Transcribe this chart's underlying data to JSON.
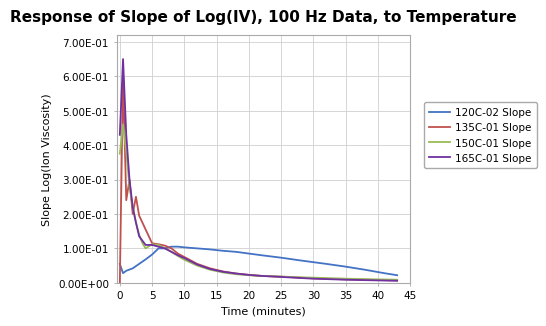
{
  "title": "Response of Slope of Log(IV), 100 Hz Data, to Temperature",
  "xlabel": "Time (minutes)",
  "ylabel": "Slope Log(Ion Viscosity)",
  "xlim": [
    -0.5,
    45
  ],
  "ylim": [
    0,
    0.72
  ],
  "yticks": [
    0.0,
    0.1,
    0.2,
    0.3,
    0.4,
    0.5,
    0.6,
    0.7
  ],
  "ytick_labels": [
    "0.00E+00",
    "1.00E-01",
    "2.00E-01",
    "3.00E-01",
    "4.00E-01",
    "5.00E-01",
    "6.00E-01",
    "7.00E-01"
  ],
  "xticks": [
    0,
    5,
    10,
    15,
    20,
    25,
    30,
    35,
    40,
    45
  ],
  "series": [
    {
      "label": "120C-02 Slope",
      "color": "#4472C4",
      "t": [
        0,
        0.5,
        1,
        2,
        3,
        4,
        5,
        6,
        7,
        8,
        9,
        10,
        12,
        14,
        16,
        18,
        20,
        22,
        25,
        28,
        30,
        32,
        35,
        38,
        41,
        43
      ],
      "v": [
        0.055,
        0.028,
        0.035,
        0.042,
        0.055,
        0.068,
        0.082,
        0.1,
        0.1,
        0.105,
        0.105,
        0.103,
        0.1,
        0.097,
        0.093,
        0.09,
        0.085,
        0.08,
        0.073,
        0.065,
        0.06,
        0.055,
        0.047,
        0.038,
        0.028,
        0.022
      ]
    },
    {
      "label": "135C-01 Slope",
      "color": "#C0504D",
      "t": [
        0,
        0.5,
        1,
        1.5,
        2,
        2.5,
        3,
        4,
        5,
        6,
        7,
        8,
        9,
        10,
        12,
        14,
        16,
        18,
        20,
        22,
        25,
        28,
        30,
        35,
        40,
        43
      ],
      "v": [
        0.0,
        0.6,
        0.24,
        0.3,
        0.2,
        0.25,
        0.195,
        0.155,
        0.115,
        0.112,
        0.108,
        0.1,
        0.085,
        0.075,
        0.055,
        0.042,
        0.033,
        0.027,
        0.023,
        0.02,
        0.018,
        0.015,
        0.013,
        0.01,
        0.008,
        0.007
      ]
    },
    {
      "label": "150C-01 Slope",
      "color": "#9BBB59",
      "t": [
        0,
        0.5,
        1,
        1.5,
        2,
        2.5,
        3,
        3.5,
        4,
        5,
        6,
        7,
        8,
        9,
        10,
        12,
        14,
        16,
        18,
        20,
        22,
        25,
        28,
        30,
        35,
        40,
        43
      ],
      "v": [
        0.375,
        0.46,
        0.38,
        0.28,
        0.22,
        0.175,
        0.14,
        0.115,
        0.1,
        0.112,
        0.11,
        0.1,
        0.09,
        0.078,
        0.067,
        0.05,
        0.038,
        0.03,
        0.025,
        0.022,
        0.02,
        0.018,
        0.016,
        0.015,
        0.012,
        0.01,
        0.009
      ]
    },
    {
      "label": "165C-01 Slope",
      "color": "#7030A0",
      "t": [
        0,
        0.5,
        1,
        1.5,
        2,
        2.5,
        3,
        4,
        5,
        6,
        7,
        8,
        9,
        10,
        12,
        14,
        16,
        18,
        20,
        22,
        25,
        28,
        30,
        35,
        40,
        43
      ],
      "v": [
        0.43,
        0.65,
        0.43,
        0.3,
        0.22,
        0.175,
        0.135,
        0.11,
        0.11,
        0.105,
        0.1,
        0.09,
        0.08,
        0.072,
        0.053,
        0.04,
        0.032,
        0.027,
        0.023,
        0.02,
        0.017,
        0.014,
        0.012,
        0.009,
        0.007,
        0.006
      ]
    }
  ],
  "background_color": "#FFFFFF",
  "plot_bg_color": "#FFFFFF",
  "grid_color": "#D0D0D0",
  "title_fontsize": 11,
  "axis_label_fontsize": 8,
  "tick_fontsize": 7.5,
  "legend_fontsize": 7.5,
  "linewidth": 1.3
}
